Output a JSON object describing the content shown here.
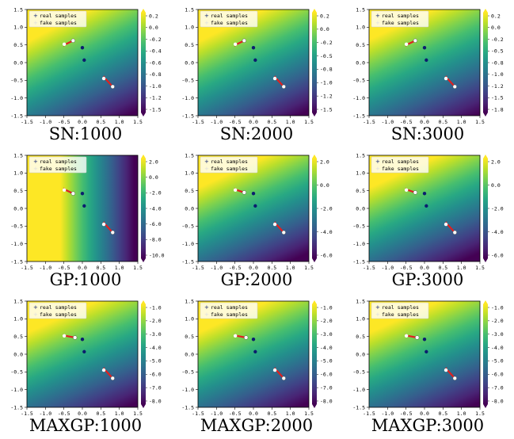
{
  "colors": {
    "viridis": [
      "#440154",
      "#482878",
      "#3e4989",
      "#31688e",
      "#26828e",
      "#1f9e89",
      "#35b779",
      "#6ece58",
      "#b5de2b",
      "#fde725"
    ],
    "real_marker": "#0b1e6e",
    "fake_marker": "#ffffff",
    "arrow": "#e02020",
    "legend_bg": "#ffffff"
  },
  "chart_data": [
    {
      "type": "heatmap",
      "title": "",
      "caption": "SN:1000",
      "row": 0,
      "col": 0,
      "xlim": [
        -1.5,
        1.5
      ],
      "ylim": [
        -1.5,
        1.5
      ],
      "xticks": [
        "-1.5",
        "-1.0",
        "-0.5",
        "0.0",
        "0.5",
        "1.0",
        "1.5"
      ],
      "yticks": [
        "1.5",
        "1.0",
        "0.5",
        "0.0",
        "-0.5",
        "-1.0",
        "-1.5"
      ],
      "legend": [
        "real samples",
        "fake samples"
      ],
      "colorbar_ticks": [
        "0.2",
        "0.0",
        "-0.2",
        "-0.4",
        "-0.6",
        "-0.8",
        "-1.0",
        "-1.2",
        "-1.5"
      ],
      "field": {
        "peak": [
          0.0,
          1.4
        ],
        "trough": [
          1.4,
          -1.4
        ]
      },
      "real_points": [
        [
          0.0,
          0.42
        ],
        [
          0.05,
          0.07
        ]
      ],
      "fake_arrows": [
        [
          -0.45,
          0.52,
          -0.25,
          0.62
        ],
        [
          0.62,
          -0.45,
          0.82,
          -0.68
        ]
      ]
    },
    {
      "type": "heatmap",
      "title": "",
      "caption": "SN:2000",
      "row": 0,
      "col": 1,
      "xlim": [
        -1.5,
        1.5
      ],
      "ylim": [
        -1.5,
        1.5
      ],
      "xticks": [
        "-1.5",
        "-1.0",
        "-0.5",
        "0.0",
        "0.5",
        "1.0",
        "1.5"
      ],
      "yticks": [
        "1.5",
        "1.0",
        "0.5",
        "0.0",
        "-0.5",
        "-1.0",
        "-1.5"
      ],
      "legend": [
        "real samples",
        "fake samples"
      ],
      "colorbar_ticks": [
        "0.2",
        "0.0",
        "-0.2",
        "-0.5",
        "-0.8",
        "-1.0",
        "-1.2",
        "-1.5"
      ],
      "field": {
        "peak": [
          0.1,
          1.4
        ],
        "trough": [
          1.4,
          -1.4
        ]
      },
      "real_points": [
        [
          0.0,
          0.42
        ],
        [
          0.05,
          0.07
        ]
      ],
      "fake_arrows": [
        [
          -0.45,
          0.52,
          -0.25,
          0.62
        ],
        [
          0.62,
          -0.45,
          0.82,
          -0.68
        ]
      ]
    },
    {
      "type": "heatmap",
      "title": "",
      "caption": "SN:3000",
      "row": 0,
      "col": 2,
      "xlim": [
        -1.5,
        1.5
      ],
      "ylim": [
        -1.5,
        1.5
      ],
      "xticks": [
        "-1.5",
        "-1.0",
        "-0.5",
        "0.0",
        "0.5",
        "1.0",
        "1.5"
      ],
      "yticks": [
        "1.5",
        "1.0",
        "0.5",
        "0.0",
        "-0.5",
        "-1.0",
        "-1.5"
      ],
      "legend": [
        "real samples",
        "fake samples"
      ],
      "colorbar_ticks": [
        "0.2",
        "0.0",
        "-0.2",
        "-0.5",
        "-0.8",
        "-1.0",
        "-1.2",
        "-1.5",
        "-1.8"
      ],
      "field": {
        "peak": [
          0.15,
          1.45
        ],
        "trough": [
          1.45,
          -1.45
        ]
      },
      "real_points": [
        [
          0.0,
          0.42
        ],
        [
          0.05,
          0.07
        ]
      ],
      "fake_arrows": [
        [
          -0.45,
          0.52,
          -0.25,
          0.62
        ],
        [
          0.62,
          -0.45,
          0.82,
          -0.68
        ]
      ]
    },
    {
      "type": "heatmap",
      "title": "",
      "caption": "GP:1000",
      "row": 1,
      "col": 0,
      "xlim": [
        -1.5,
        1.5
      ],
      "ylim": [
        -1.5,
        1.5
      ],
      "xticks": [
        "-1.5",
        "-1.0",
        "-0.5",
        "0.0",
        "0.5",
        "1.0",
        "1.5"
      ],
      "yticks": [
        "1.5",
        "1.0",
        "0.5",
        "0.0",
        "-0.5",
        "-1.0",
        "-1.5"
      ],
      "legend": [
        "real samples",
        "fake samples"
      ],
      "colorbar_ticks": [
        "2.0",
        "0.0",
        "-2.0",
        "-4.0",
        "-6.0",
        "-8.0",
        "-10.0"
      ],
      "field": {
        "peak": [
          -0.6,
          -1.2
        ],
        "trough": [
          1.4,
          -1.2
        ]
      },
      "real_points": [
        [
          0.0,
          0.42
        ],
        [
          0.05,
          0.07
        ]
      ],
      "fake_arrows": [
        [
          -0.45,
          0.52,
          -0.25,
          0.42
        ],
        [
          0.62,
          -0.45,
          0.82,
          -0.68
        ]
      ]
    },
    {
      "type": "heatmap",
      "title": "",
      "caption": "GP:2000",
      "row": 1,
      "col": 1,
      "xlim": [
        -1.5,
        1.5
      ],
      "ylim": [
        -1.5,
        1.5
      ],
      "xticks": [
        "-1.5",
        "-1.0",
        "-0.5",
        "0.0",
        "0.5",
        "1.0",
        "1.5"
      ],
      "yticks": [
        "1.5",
        "1.0",
        "0.5",
        "0.0",
        "-0.5",
        "-1.0",
        "-1.5"
      ],
      "legend": [
        "real samples",
        "fake samples"
      ],
      "colorbar_ticks": [
        "2.0",
        "0.0",
        "-2.0",
        "-4.0",
        "-6.0"
      ],
      "field": {
        "peak": [
          0.2,
          1.4
        ],
        "trough": [
          1.4,
          -1.3
        ]
      },
      "real_points": [
        [
          0.0,
          0.42
        ],
        [
          0.05,
          0.07
        ]
      ],
      "fake_arrows": [
        [
          -0.45,
          0.52,
          -0.25,
          0.45
        ],
        [
          0.62,
          -0.45,
          0.82,
          -0.68
        ]
      ]
    },
    {
      "type": "heatmap",
      "title": "",
      "caption": "GP:3000",
      "row": 1,
      "col": 2,
      "xlim": [
        -1.5,
        1.5
      ],
      "ylim": [
        -1.5,
        1.5
      ],
      "xticks": [
        "-1.5",
        "-1.0",
        "-0.5",
        "0.0",
        "0.5",
        "1.0",
        "1.5"
      ],
      "yticks": [
        "1.5",
        "1.0",
        "0.5",
        "0.0",
        "-0.5",
        "-1.0",
        "-1.5"
      ],
      "legend": [
        "real samples",
        "fake samples"
      ],
      "colorbar_ticks": [
        "2.0",
        "0.0",
        "-2.0",
        "-4.0",
        "-6.0"
      ],
      "field": {
        "peak": [
          0.2,
          1.4
        ],
        "trough": [
          1.4,
          -1.3
        ]
      },
      "real_points": [
        [
          0.0,
          0.42
        ],
        [
          0.05,
          0.07
        ]
      ],
      "fake_arrows": [
        [
          -0.45,
          0.52,
          -0.25,
          0.45
        ],
        [
          0.62,
          -0.45,
          0.82,
          -0.68
        ]
      ]
    },
    {
      "type": "heatmap",
      "title": "",
      "caption": "MAXGP:1000",
      "row": 2,
      "col": 0,
      "xlim": [
        -1.5,
        1.5
      ],
      "ylim": [
        -1.5,
        1.5
      ],
      "xticks": [
        "-1.5",
        "-1.0",
        "-0.5",
        "0.0",
        "0.5",
        "1.0",
        "1.5"
      ],
      "yticks": [
        "1.5",
        "1.0",
        "0.5",
        "0.0",
        "-0.5",
        "-1.0",
        "-1.5"
      ],
      "legend": [
        "real samples",
        "fake samples"
      ],
      "colorbar_ticks": [
        "-1.0",
        "-2.0",
        "-3.0",
        "-4.0",
        "-5.0",
        "-6.0",
        "-7.0",
        "-8.0"
      ],
      "field": {
        "peak": [
          0.2,
          1.4
        ],
        "trough": [
          1.4,
          -1.4
        ]
      },
      "real_points": [
        [
          0.0,
          0.42
        ],
        [
          0.05,
          0.07
        ]
      ],
      "fake_arrows": [
        [
          -0.45,
          0.52,
          -0.2,
          0.47
        ],
        [
          0.62,
          -0.45,
          0.82,
          -0.68
        ]
      ]
    },
    {
      "type": "heatmap",
      "title": "",
      "caption": "MAXGP:2000",
      "row": 2,
      "col": 1,
      "xlim": [
        -1.5,
        1.5
      ],
      "ylim": [
        -1.5,
        1.5
      ],
      "xticks": [
        "-1.5",
        "-1.0",
        "-0.5",
        "0.0",
        "0.5",
        "1.0",
        "1.5"
      ],
      "yticks": [
        "1.5",
        "1.0",
        "0.5",
        "0.0",
        "-0.5",
        "-1.0",
        "-1.5"
      ],
      "legend": [
        "real samples",
        "fake samples"
      ],
      "colorbar_ticks": [
        "-1.0",
        "-2.0",
        "-3.0",
        "-4.0",
        "-5.0",
        "-6.0",
        "-7.0",
        "-8.0"
      ],
      "field": {
        "peak": [
          0.2,
          1.4
        ],
        "trough": [
          1.4,
          -1.4
        ]
      },
      "real_points": [
        [
          0.0,
          0.42
        ],
        [
          0.05,
          0.07
        ]
      ],
      "fake_arrows": [
        [
          -0.45,
          0.52,
          -0.2,
          0.47
        ],
        [
          0.62,
          -0.45,
          0.82,
          -0.68
        ]
      ]
    },
    {
      "type": "heatmap",
      "title": "",
      "caption": "MAXGP:3000",
      "row": 2,
      "col": 2,
      "xlim": [
        -1.5,
        1.5
      ],
      "ylim": [
        -1.5,
        1.5
      ],
      "xticks": [
        "-1.5",
        "-1.0",
        "-0.5",
        "0.0",
        "0.5",
        "1.0",
        "1.5"
      ],
      "yticks": [
        "1.5",
        "1.0",
        "0.5",
        "0.0",
        "-0.5",
        "-1.0",
        "-1.5"
      ],
      "legend": [
        "real samples",
        "fake samples"
      ],
      "colorbar_ticks": [
        "-1.0",
        "-2.0",
        "-3.0",
        "-4.0",
        "-5.0",
        "-6.0",
        "-7.0",
        "-8.0"
      ],
      "field": {
        "peak": [
          0.2,
          1.4
        ],
        "trough": [
          1.4,
          -1.4
        ]
      },
      "real_points": [
        [
          0.0,
          0.42
        ],
        [
          0.05,
          0.07
        ]
      ],
      "fake_arrows": [
        [
          -0.45,
          0.52,
          -0.2,
          0.47
        ],
        [
          0.62,
          -0.45,
          0.82,
          -0.68
        ]
      ]
    }
  ]
}
